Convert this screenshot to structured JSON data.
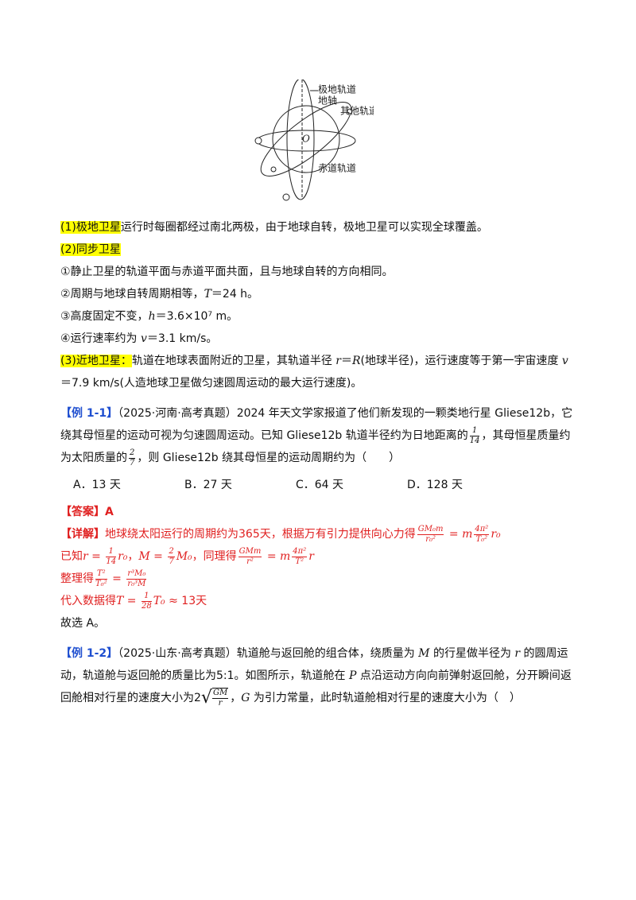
{
  "figure": {
    "labels": [
      "极地轨道",
      "地轴",
      "其他轨道",
      "O",
      "赤道轨道"
    ]
  },
  "blocks": [
    {
      "segs": [
        {
          "t": "(1)极地卫星",
          "hl": true
        },
        "运行时每圈都经过南北两极，由于地球自转，极地卫星可以实现全球覆盖。"
      ]
    },
    {
      "segs": [
        {
          "t": "(2)同步卫星",
          "hl": true
        }
      ]
    },
    {
      "segs": [
        "①静止卫星的轨道平面与赤道平面共面，且与地球自转的方向相同。"
      ]
    },
    {
      "segs": [
        "②周期与地球自转周期相等，",
        {
          "t": "T",
          "i": true
        },
        "＝24 h。"
      ]
    },
    {
      "segs": [
        "③高度固定不变，",
        {
          "t": "h",
          "i": true
        },
        "＝3.6×10⁷ m。"
      ]
    },
    {
      "segs": [
        "④运行速率约为 ",
        {
          "t": "v",
          "i": true
        },
        "＝3.1 km/s。"
      ]
    },
    {
      "segs": [
        {
          "t": "(3)近地卫星：",
          "hl": true
        },
        "轨道在地球表面附近的卫星，其轨道半径 ",
        {
          "t": "r",
          "i": true
        },
        "＝",
        {
          "t": "R",
          "i": true
        },
        "(地球半径)，运行速度等于第一宇宙速度 ",
        {
          "t": "v",
          "i": true
        },
        "＝7.9 km/s(人造地球卫星做匀速圆周运动的最大运行速度)。"
      ]
    },
    {
      "gap": true,
      "segs": [
        {
          "t": "【例 1-1】",
          "c": "blue"
        },
        "（2025·河南·高考真题）2024 年天文学家报道了他们新发现的一颗类地行星 Gliese12b，它绕其母恒星的运动可视为匀速圆周运动。已知 Gliese12b 轨道半径约为日地距离的",
        {
          "n": "1",
          "d": "14"
        },
        "，其母恒星质量约为太阳质量的",
        {
          "n": "2",
          "d": "7"
        },
        "，则 Gliese12b 绕其母恒星的运动周期约为（　　）"
      ]
    },
    {
      "options": [
        "A．13 天",
        "B．27 天",
        "C．64 天",
        "D．128 天"
      ]
    },
    {
      "color": "red",
      "segs": [
        {
          "t": "【答案】A",
          "b": true
        }
      ]
    },
    {
      "color": "red",
      "segs": [
        {
          "t": "【详解】",
          "b": true
        },
        "地球绕太阳运行的周期约为365天，根据万有引力提供向心力得",
        {
          "n": "GM₀m",
          "d": "r₀²"
        },
        {
          "t": " = m",
          "i": true
        },
        {
          "n": "4π²",
          "d": "T₀²"
        },
        {
          "t": "r₀",
          "i": true
        }
      ]
    },
    {
      "color": "red",
      "segs": [
        "已知",
        {
          "t": "r = ",
          "i": true
        },
        {
          "n": "1",
          "d": "14"
        },
        {
          "t": "r₀",
          "i": true
        },
        "，",
        {
          "t": "M = ",
          "i": true
        },
        {
          "n": "2",
          "d": "7"
        },
        {
          "t": "M₀",
          "i": true
        },
        "，同理得",
        {
          "n": "GMm",
          "d": "r²"
        },
        {
          "t": " = m",
          "i": true
        },
        {
          "n": "4π²",
          "d": "T²"
        },
        {
          "t": "r",
          "i": true
        }
      ]
    },
    {
      "color": "red",
      "segs": [
        "整理得",
        {
          "n": "T²",
          "d": "T₀²"
        },
        " = ",
        {
          "n": "r³M₀",
          "d": "r₀³M"
        }
      ]
    },
    {
      "color": "red",
      "segs": [
        "代入数据得",
        {
          "t": "T = ",
          "i": true
        },
        {
          "n": "1",
          "d": "28"
        },
        {
          "t": "T₀",
          "i": true
        },
        " ≈ 13天"
      ]
    },
    {
      "segs": [
        "故选 A。"
      ]
    },
    {
      "gap": true,
      "segs": [
        {
          "t": "【例 1-2】",
          "c": "blue"
        },
        "（2025·山东·高考真题）轨道舱与返回舱的组合体，绕质量为 ",
        {
          "t": "M",
          "i": true
        },
        " 的行星做半径为 ",
        {
          "t": "r",
          "i": true
        },
        " 的圆周运动，轨道舱与返回舱的质量比为5:1。如图所示，轨道舱在 ",
        {
          "t": "P",
          "i": true
        },
        " 点沿运动方向向前弹射返回舱，分开瞬间返回舱相对行星的速度大小为2",
        {
          "root": {
            "n": "GM",
            "d": "r"
          }
        },
        "，",
        {
          "t": "G",
          "i": true
        },
        " 为引力常量，此时轨道舱相对行星的速度大小为（　）"
      ]
    }
  ]
}
